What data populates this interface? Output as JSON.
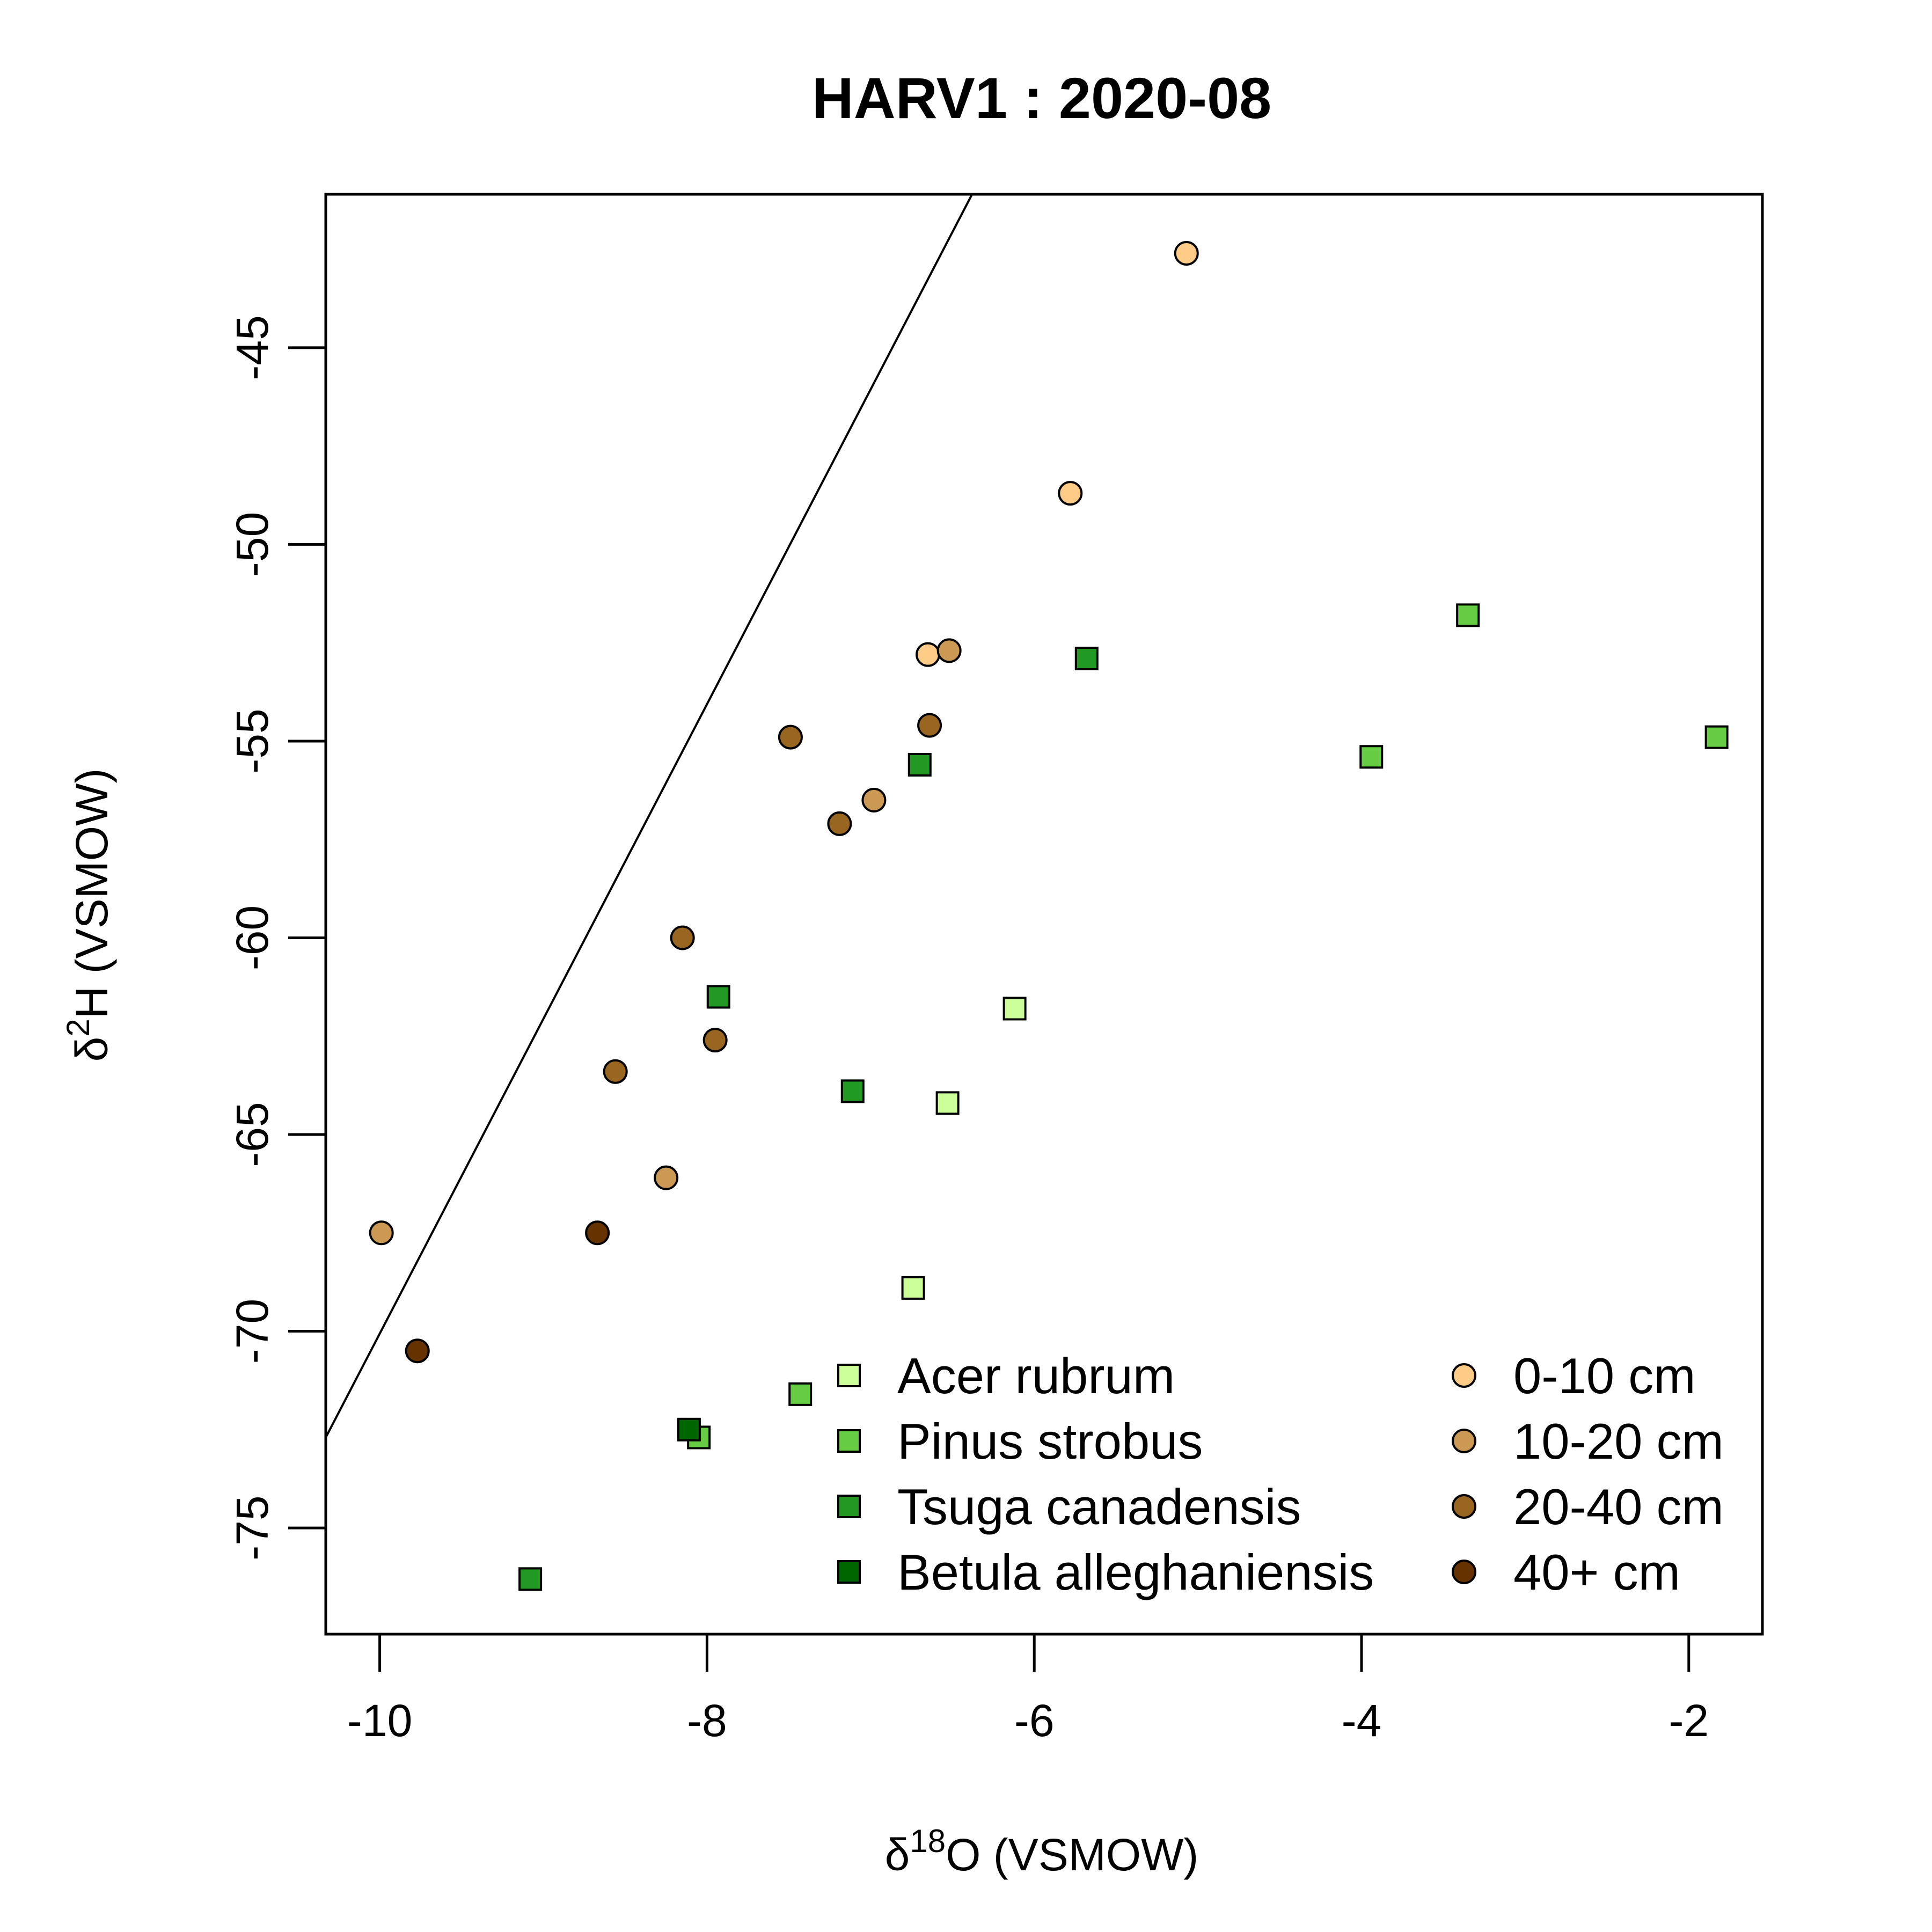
{
  "chart_data": {
    "type": "scatter",
    "title": "HARV1 : 2020-08",
    "xlabel": {
      "prefix": "δ",
      "sup": "18",
      "suffix": "O (VSMOW)"
    },
    "ylabel": {
      "prefix": "δ",
      "sup": "2",
      "suffix": "H (VSMOW)"
    },
    "xlim": [
      -10.33,
      -1.55
    ],
    "ylim": [
      -77.7,
      -41.1
    ],
    "xticks": [
      -10,
      -8,
      -6,
      -4,
      -2
    ],
    "yticks": [
      -45,
      -50,
      -55,
      -60,
      -65,
      -70,
      -75
    ],
    "grid": false,
    "legend_placement": "bottom-right",
    "reference_line": {
      "x": [
        -10.33,
        -6.38
      ],
      "y": [
        -72.7,
        -41.1
      ]
    },
    "series": [
      {
        "name": "Acer rubrum",
        "marker": "square",
        "color": "#ccff99",
        "x": [
          -6.12,
          -6.53,
          -6.74
        ],
        "y": [
          -61.8,
          -64.2,
          -68.9
        ]
      },
      {
        "name": "Pinus strobus",
        "marker": "square",
        "color": "#66cc44",
        "x": [
          -3.35,
          -3.94,
          -1.83,
          -7.43,
          -8.05
        ],
        "y": [
          -51.8,
          -55.4,
          -54.9,
          -71.6,
          -72.7
        ]
      },
      {
        "name": "Tsuga canadensis",
        "marker": "square",
        "color": "#229922",
        "x": [
          -5.68,
          -6.7,
          -7.93,
          -7.11,
          -9.08
        ],
        "y": [
          -52.9,
          -55.6,
          -61.5,
          -63.9,
          -76.3
        ]
      },
      {
        "name": "Betula alleghaniensis",
        "marker": "square",
        "color": "#006600",
        "x": [
          -8.11
        ],
        "y": [
          -72.5
        ]
      },
      {
        "name": "0-10 cm",
        "marker": "circle",
        "color": "#ffcc88",
        "x": [
          -5.07,
          -5.78,
          -6.65
        ],
        "y": [
          -42.6,
          -48.7,
          -52.8
        ]
      },
      {
        "name": "10-20 cm",
        "marker": "circle",
        "color": "#cc9955",
        "x": [
          -6.52,
          -6.98,
          -8.25,
          -9.99
        ],
        "y": [
          -52.7,
          -56.5,
          -66.1,
          -67.5
        ]
      },
      {
        "name": "20-40 cm",
        "marker": "circle",
        "color": "#996622",
        "x": [
          -6.64,
          -7.49,
          -7.19,
          -8.15,
          -7.95,
          -8.56
        ],
        "y": [
          -54.6,
          -54.9,
          -57.1,
          -60.0,
          -62.6,
          -63.4
        ]
      },
      {
        "name": "40+ cm",
        "marker": "circle",
        "color": "#663300",
        "x": [
          -8.67,
          -9.77
        ],
        "y": [
          -67.5,
          -70.5
        ]
      }
    ]
  }
}
